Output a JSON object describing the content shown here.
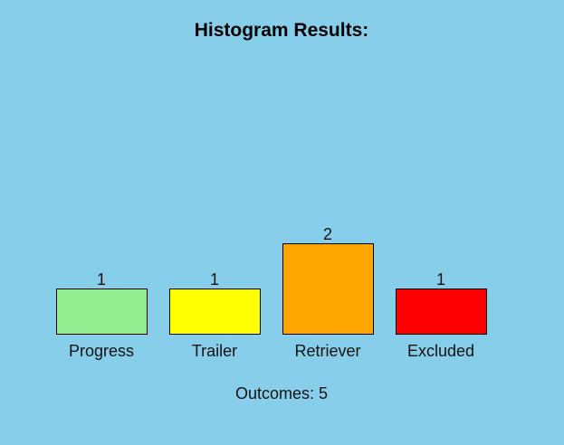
{
  "chart_data": {
    "type": "bar",
    "title": "Histogram Results:",
    "categories": [
      "Progress",
      "Trailer",
      "Retriever",
      "Excluded"
    ],
    "values": [
      1,
      1,
      2,
      1
    ],
    "bar_colors": [
      "#90ee90",
      "#ffff00",
      "#ffa500",
      "#ff0000"
    ],
    "xlabel": "",
    "ylabel": "",
    "ylim": [
      0,
      2
    ],
    "grid": false,
    "summary": {
      "label": "Outcomes:",
      "total": 5
    }
  },
  "background_color": "#87ceeb"
}
